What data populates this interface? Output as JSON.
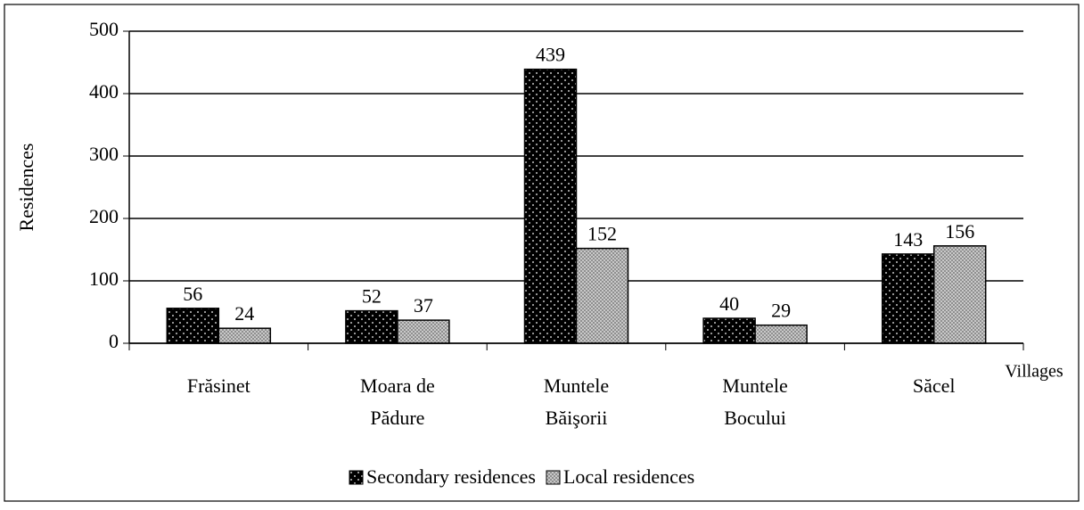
{
  "chart_data": {
    "type": "bar",
    "x_label": "Villages",
    "y_label": "Residences",
    "categories": [
      "Frăsinet",
      "Moara de Pădure",
      "Muntele Băişorii",
      "Muntele Bocului",
      "Săcel"
    ],
    "series": [
      {
        "name": "Secondary residences",
        "color": "#000000",
        "values": [
          56,
          52,
          439,
          40,
          143
        ]
      },
      {
        "name": "Local residences",
        "color": "#d4d4d4",
        "values": [
          24,
          37,
          152,
          29,
          156
        ]
      }
    ],
    "ylim": [
      0,
      500
    ],
    "yticks": [
      0,
      100,
      200,
      300,
      400,
      500
    ],
    "grid": true,
    "legend": "bottom"
  }
}
